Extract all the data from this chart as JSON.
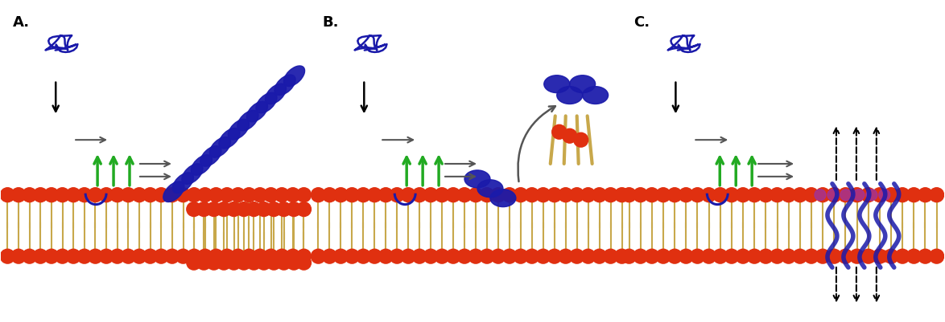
{
  "panels": [
    "A.",
    "B.",
    "C."
  ],
  "bg_color": "#ffffff",
  "blue_color": "#1a1aaa",
  "green_color": "#22aa22",
  "red_bead_color": "#e03010",
  "tan_color": "#c8a84b",
  "arrow_color": "#555555",
  "purple_color": "#9933aa",
  "panel_label_fontsize": 13
}
